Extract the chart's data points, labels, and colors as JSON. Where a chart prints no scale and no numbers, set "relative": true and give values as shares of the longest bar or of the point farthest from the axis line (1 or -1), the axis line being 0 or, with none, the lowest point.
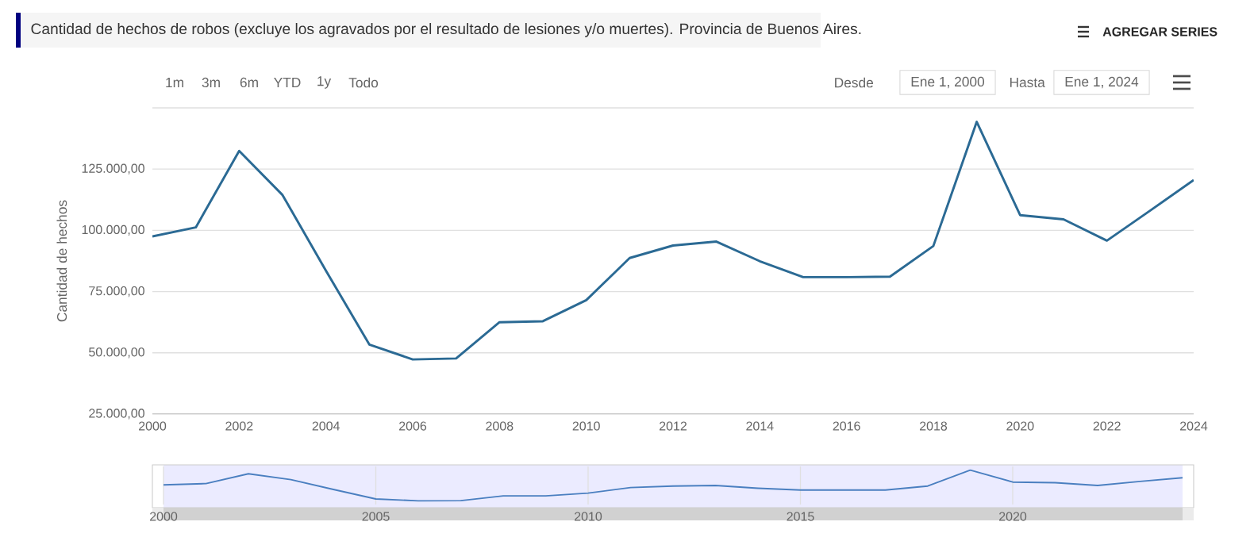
{
  "chart_data": [
    {
      "type": "line",
      "title": "Cantidad de hechos de robos (excluye los agravados por el resultado de lesiones y/o muertes). Provincia de Buenos Aires.",
      "ylabel": "Cantidad de hechos",
      "x": [
        2000,
        2001,
        2002,
        2003,
        2004,
        2005,
        2006,
        2007,
        2008,
        2009,
        2010,
        2011,
        2012,
        2013,
        2014,
        2015,
        2016,
        2017,
        2018,
        2019,
        2020,
        2021,
        2022,
        2023,
        2024
      ],
      "series": [
        {
          "color": "#2b6a94",
          "values": [
            97500,
            101200,
            132400,
            114400,
            83500,
            53400,
            47300,
            47700,
            62500,
            62900,
            71500,
            88700,
            93800,
            95400,
            87400,
            80900,
            80900,
            81100,
            93600,
            144300,
            106200,
            104500,
            95800,
            108100,
            120500
          ]
        }
      ],
      "xlim": [
        2000,
        2024
      ],
      "xticks": [
        2000,
        2002,
        2004,
        2006,
        2008,
        2010,
        2012,
        2014,
        2016,
        2018,
        2020,
        2022,
        2024
      ],
      "ylim": [
        25000,
        150000
      ],
      "yticks": [
        {
          "value": 25000,
          "label": "25.000,00"
        },
        {
          "value": 50000,
          "label": "50.000,00"
        },
        {
          "value": 75000,
          "label": "75.000,00"
        },
        {
          "value": 100000,
          "label": "100.000,00"
        },
        {
          "value": 125000,
          "label": "125.000,00"
        },
        {
          "value": 150000,
          "label": null
        }
      ],
      "grid": "y",
      "marker": "none",
      "annotations": [
        "AGREGAR SERIES",
        "1m",
        "3m",
        "6m",
        "YTD",
        "1y",
        "Todo",
        "Desde",
        "Ene 1, 2000",
        "Hasta",
        "Ene 1, 2024"
      ]
    },
    {
      "type": "line",
      "relative": true,
      "tick_labels": "x",
      "x": [
        2000,
        2001,
        2002,
        2003,
        2004,
        2005,
        2006,
        2007,
        2008,
        2009,
        2010,
        2011,
        2012,
        2013,
        2014,
        2015,
        2016,
        2017,
        2018,
        2019,
        2020,
        2021,
        2022,
        2023,
        2024
      ],
      "series": [
        {
          "color": "#4a7fc0",
          "values": [
            0.52,
            0.56,
            0.88,
            0.69,
            0.37,
            0.06,
            0,
            0.004,
            0.16,
            0.16,
            0.25,
            0.43,
            0.48,
            0.5,
            0.41,
            0.35,
            0.35,
            0.35,
            0.48,
            1,
            0.61,
            0.59,
            0.5,
            0.63,
            0.75
          ]
        }
      ],
      "xlim": [
        2000,
        2024
      ],
      "xticks": [
        2000,
        2005,
        2010,
        2015,
        2020
      ],
      "grid": "x",
      "marker": "none"
    }
  ]
}
